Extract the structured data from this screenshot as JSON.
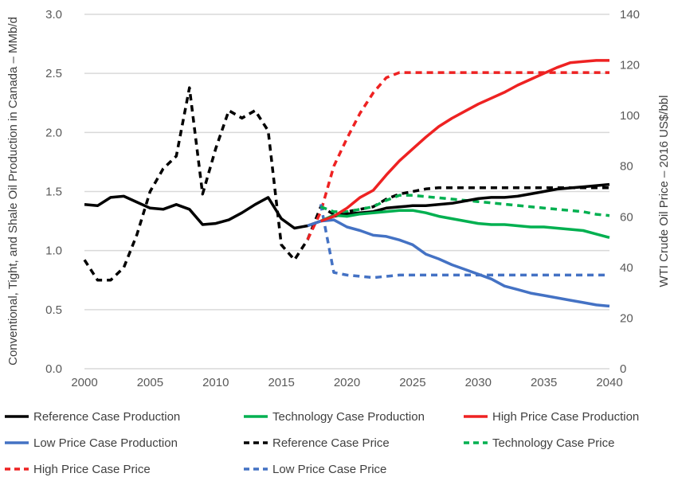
{
  "chart_data": {
    "type": "line",
    "ylabel": "Conventional, Tight, and Shale Oil Production in Canada – MMb/d",
    "y2label": "WTI Crude Oil Price – 2016 US$/bbl",
    "xlim": [
      2000,
      2040
    ],
    "ylim": [
      0,
      3.0
    ],
    "y2lim": [
      0,
      140
    ],
    "grid": true,
    "legend": "bottom",
    "x_ticks": [
      "2000",
      "2005",
      "2010",
      "2015",
      "2020",
      "2025",
      "2030",
      "2035",
      "2040"
    ],
    "y_ticks": [
      "0.0",
      "0.5",
      "1.0",
      "1.5",
      "2.0",
      "2.5",
      "3.0"
    ],
    "y2_ticks": [
      "0",
      "20",
      "40",
      "60",
      "80",
      "100",
      "120",
      "140"
    ],
    "series": [
      {
        "name": "Reference Case Production",
        "axis": "left",
        "style": "solid",
        "color": "#000000",
        "start": 2000,
        "values": [
          1.39,
          1.38,
          1.45,
          1.46,
          1.41,
          1.36,
          1.35,
          1.39,
          1.35,
          1.22,
          1.23,
          1.26,
          1.32,
          1.39,
          1.45,
          1.27,
          1.19,
          1.21,
          1.25,
          1.29,
          1.31,
          1.32,
          1.33,
          1.36,
          1.37,
          1.38,
          1.38,
          1.39,
          1.4,
          1.42,
          1.44,
          1.45,
          1.45,
          1.46,
          1.48,
          1.5,
          1.52,
          1.53,
          1.54,
          1.55,
          1.56
        ]
      },
      {
        "name": "Technology Case Production",
        "axis": "left",
        "style": "solid",
        "color": "#00b050",
        "start": 2018,
        "values": [
          1.25,
          1.3,
          1.29,
          1.31,
          1.32,
          1.33,
          1.34,
          1.34,
          1.32,
          1.29,
          1.27,
          1.25,
          1.23,
          1.22,
          1.22,
          1.21,
          1.2,
          1.2,
          1.19,
          1.18,
          1.17,
          1.14,
          1.11
        ]
      },
      {
        "name": "High Price Case Production",
        "axis": "left",
        "style": "solid",
        "color": "#ee2222",
        "start": 2018,
        "values": [
          1.25,
          1.29,
          1.36,
          1.45,
          1.51,
          1.64,
          1.76,
          1.86,
          1.96,
          2.05,
          2.12,
          2.18,
          2.24,
          2.29,
          2.34,
          2.4,
          2.45,
          2.5,
          2.55,
          2.59,
          2.6,
          2.61,
          2.61
        ]
      },
      {
        "name": "Low Price Case Production",
        "axis": "left",
        "style": "solid",
        "color": "#4472c4",
        "start": 2017,
        "values": [
          1.21,
          1.25,
          1.26,
          1.2,
          1.17,
          1.13,
          1.12,
          1.09,
          1.05,
          0.97,
          0.93,
          0.88,
          0.84,
          0.8,
          0.76,
          0.7,
          0.67,
          0.64,
          0.62,
          0.6,
          0.58,
          0.56,
          0.54,
          0.53
        ]
      },
      {
        "name": "Reference Case Price",
        "axis": "right",
        "style": "dashed",
        "color": "#000000",
        "start": 2000,
        "values": [
          43,
          35,
          35,
          40,
          53,
          70,
          79,
          84,
          111,
          69,
          87,
          102,
          99,
          102,
          94,
          49,
          43,
          51,
          64,
          61,
          62,
          63,
          64,
          67,
          69,
          70,
          71,
          71.5,
          71.5,
          71.5,
          71.5,
          71.5,
          71.5,
          71.5,
          71.5,
          71.5,
          71.5,
          71.5,
          71.5,
          71.5,
          71.5
        ]
      },
      {
        "name": "Technology Case Price",
        "axis": "right",
        "style": "dashed",
        "color": "#00b050",
        "start": 2018,
        "values": [
          64,
          62,
          62,
          63,
          64,
          66.5,
          68.5,
          68.5,
          68,
          67.5,
          67,
          66.5,
          66,
          65.5,
          65,
          64.5,
          64,
          63.5,
          63,
          62.5,
          62,
          61,
          60.5
        ]
      },
      {
        "name": "High Price Case Price",
        "axis": "right",
        "style": "dashed",
        "color": "#ee2222",
        "start": 2017,
        "values": [
          51,
          62,
          80,
          91,
          101,
          109,
          115,
          117,
          117,
          117,
          117,
          117,
          117,
          117,
          117,
          117,
          117,
          117,
          117,
          117,
          117,
          117,
          117,
          117
        ]
      },
      {
        "name": "Low Price Case Price",
        "axis": "right",
        "style": "dashed",
        "color": "#4472c4",
        "start": 2018,
        "values": [
          65,
          38,
          37,
          36.5,
          36,
          36.5,
          37,
          37,
          37,
          37,
          37,
          37,
          37,
          37,
          37,
          37,
          37,
          37,
          37,
          37,
          37,
          37,
          37
        ]
      }
    ]
  }
}
